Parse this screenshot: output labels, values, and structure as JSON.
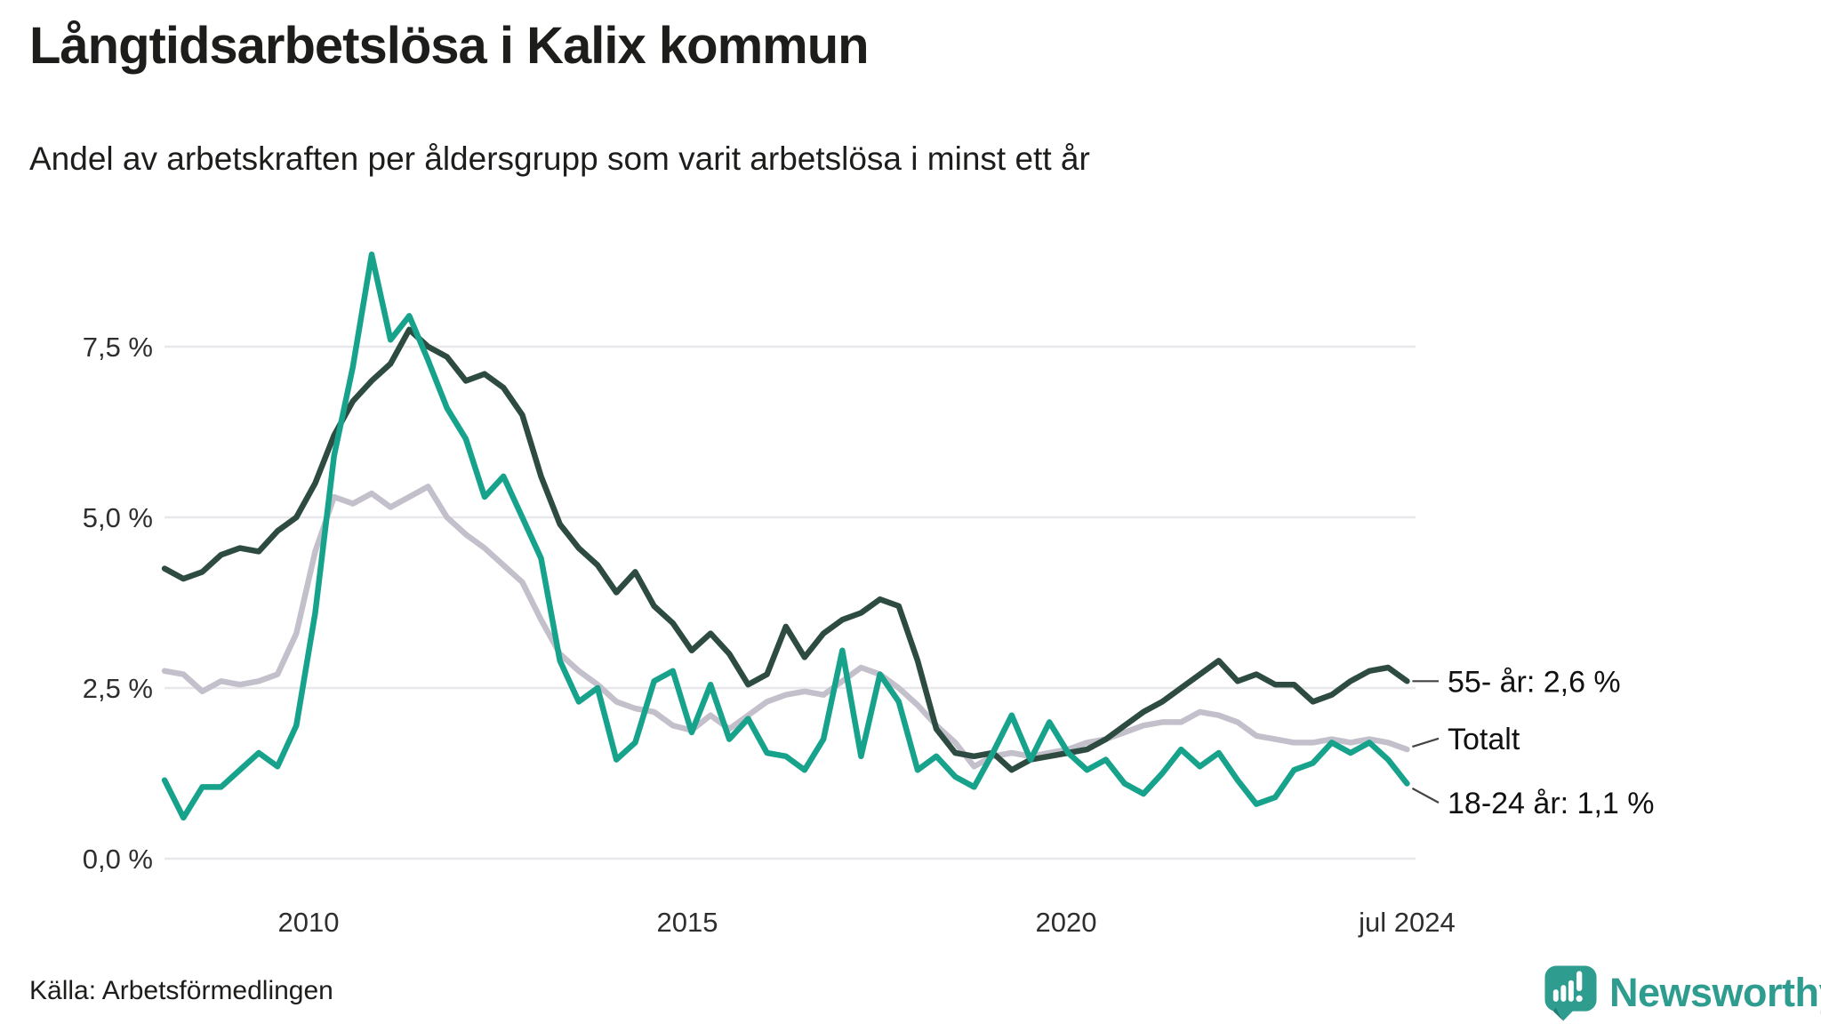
{
  "header": {
    "title": "Långtidsarbetslösa i Kalix kommun",
    "subtitle": "Andel av arbetskraften per åldersgrupp som varit arbetslösa i minst ett år"
  },
  "footer": {
    "source": "Källa: Arbetsförmedlingen",
    "brand": "Newsworthy"
  },
  "colors": {
    "series_55": "#2d4b41",
    "series_totalt": "#c3c0cc",
    "series_18_24": "#17a28c",
    "gridline": "#e8e8ec",
    "annotation_connector": "#444444",
    "brand_teal": "#2e9c8f"
  },
  "chart_data": {
    "type": "line",
    "title": "Långtidsarbetslösa i Kalix kommun",
    "subtitle": "Andel av arbetskraften per åldersgrupp som varit arbetslösa i minst ett år",
    "unit": "%",
    "grid": "horizontal",
    "x_domain": [
      2008.1,
      2024.5
    ],
    "ylim": [
      0,
      9.2
    ],
    "y_ticks": [
      {
        "value": 0,
        "label": "0,0 %"
      },
      {
        "value": 2.5,
        "label": "2,5 %"
      },
      {
        "value": 5,
        "label": "5,0 %"
      },
      {
        "value": 7.5,
        "label": "7,5 %"
      }
    ],
    "x_ticks": [
      {
        "t": 2010,
        "label": "2010"
      },
      {
        "t": 2015,
        "label": "2015"
      },
      {
        "t": 2020,
        "label": "2020"
      },
      {
        "t": 2024.5,
        "label": "jul 2024"
      }
    ],
    "series": [
      {
        "name": "Totalt",
        "color": "#c3c0cc",
        "values": [
          2.75,
          2.7,
          2.45,
          2.6,
          2.55,
          2.6,
          2.7,
          3.3,
          4.5,
          5.3,
          5.2,
          5.35,
          5.15,
          5.3,
          5.45,
          5.0,
          4.75,
          4.55,
          4.3,
          4.05,
          3.5,
          3.0,
          2.75,
          2.55,
          2.3,
          2.2,
          2.15,
          1.95,
          1.88,
          2.1,
          1.9,
          2.1,
          2.3,
          2.4,
          2.45,
          2.4,
          2.6,
          2.8,
          2.7,
          2.5,
          2.25,
          1.95,
          1.7,
          1.35,
          1.5,
          1.55,
          1.5,
          1.55,
          1.6,
          1.7,
          1.75,
          1.85,
          1.95,
          2.0,
          2.0,
          2.15,
          2.1,
          2.0,
          1.8,
          1.75,
          1.7,
          1.7,
          1.75,
          1.7,
          1.75,
          1.7,
          1.6
        ]
      },
      {
        "name": "55- år",
        "color": "#2d4b41",
        "values": [
          4.25,
          4.1,
          4.2,
          4.45,
          4.55,
          4.5,
          4.8,
          5.0,
          5.5,
          6.2,
          6.7,
          7.0,
          7.25,
          7.75,
          7.5,
          7.35,
          7.0,
          7.1,
          6.9,
          6.5,
          5.6,
          4.9,
          4.55,
          4.3,
          3.9,
          4.2,
          3.7,
          3.45,
          3.05,
          3.3,
          3.0,
          2.55,
          2.7,
          3.4,
          2.95,
          3.3,
          3.5,
          3.6,
          3.8,
          3.7,
          2.9,
          1.9,
          1.55,
          1.5,
          1.55,
          1.3,
          1.45,
          1.5,
          1.55,
          1.6,
          1.75,
          1.95,
          2.15,
          2.3,
          2.5,
          2.7,
          2.9,
          2.6,
          2.7,
          2.55,
          2.55,
          2.3,
          2.4,
          2.6,
          2.75,
          2.8,
          2.6
        ]
      },
      {
        "name": "18-24 år",
        "color": "#17a28c",
        "values": [
          1.15,
          0.6,
          1.05,
          1.05,
          1.3,
          1.55,
          1.35,
          1.95,
          3.6,
          5.9,
          7.2,
          8.85,
          7.6,
          7.95,
          7.3,
          6.6,
          6.15,
          5.3,
          5.6,
          5.0,
          4.4,
          2.9,
          2.3,
          2.5,
          1.45,
          1.7,
          2.6,
          2.75,
          1.85,
          2.55,
          1.75,
          2.05,
          1.55,
          1.5,
          1.3,
          1.75,
          3.05,
          1.5,
          2.7,
          2.3,
          1.3,
          1.5,
          1.2,
          1.05,
          1.55,
          2.1,
          1.45,
          2.0,
          1.55,
          1.3,
          1.45,
          1.1,
          0.95,
          1.25,
          1.6,
          1.35,
          1.55,
          1.15,
          0.8,
          0.9,
          1.3,
          1.4,
          1.7,
          1.55,
          1.7,
          1.45,
          1.1
        ]
      }
    ],
    "annotations": [
      {
        "label": "55- år: 2,6 %",
        "series": "55- år",
        "end_value": 2.6,
        "label_value": 2.6
      },
      {
        "label": "Totalt",
        "series": "Totalt",
        "end_value": 1.6,
        "label_value": 1.76
      },
      {
        "label": "18-24 år: 1,1 %",
        "series": "18-24 år",
        "end_value": 1.1,
        "label_value": 0.82
      }
    ],
    "legend_position": "right-of-line-ends"
  }
}
